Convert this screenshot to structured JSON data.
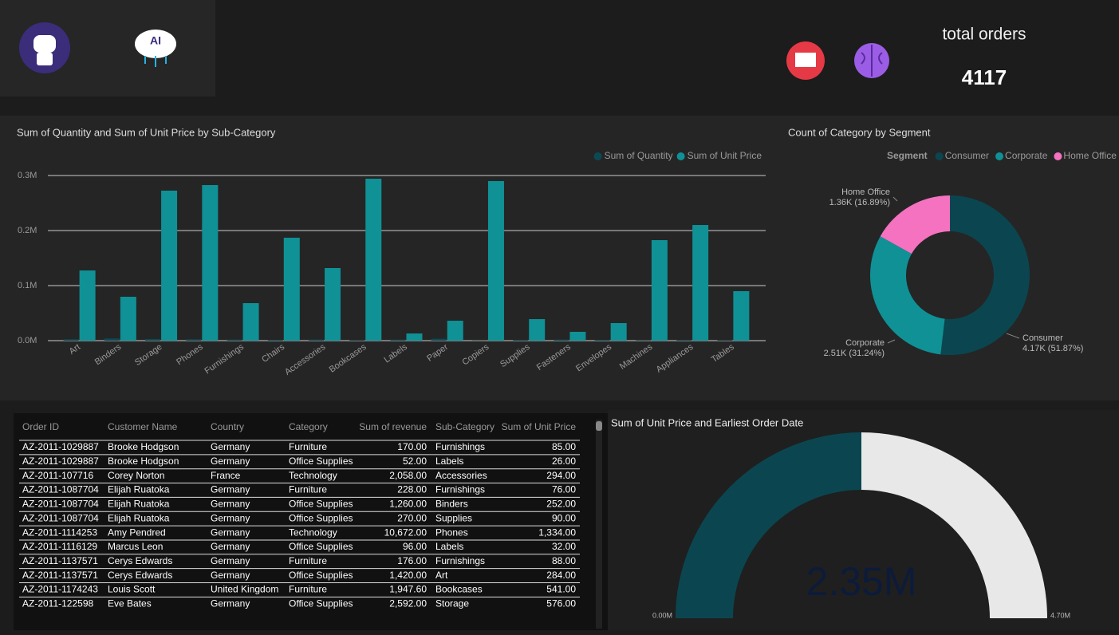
{
  "kpi": {
    "label": "total orders",
    "value": 4117
  },
  "chart_data": [
    {
      "type": "bar",
      "title": "Sum of Quantity and Sum of Unit Price by Sub-Category",
      "categories": [
        "Art",
        "Binders",
        "Storage",
        "Phones",
        "Furnishings",
        "Chairs",
        "Accessories",
        "Bookcases",
        "Labels",
        "Paper",
        "Copiers",
        "Supplies",
        "Fasteners",
        "Envelopes",
        "Machines",
        "Appliances",
        "Tables"
      ],
      "series": [
        {
          "name": "Sum of Quantity",
          "color": "#0b4a55",
          "values": [
            2500,
            4000,
            3000,
            2500,
            2000,
            1500,
            2000,
            800,
            1800,
            3500,
            300,
            1200,
            2000,
            1500,
            500,
            1200,
            800
          ]
        },
        {
          "name": "Sum of Unit Price",
          "color": "#0f9196",
          "values": [
            127500,
            79700,
            272500,
            282600,
            68100,
            187000,
            131900,
            294200,
            13000,
            36200,
            289900,
            39100,
            16000,
            31900,
            182600,
            210100,
            89900
          ]
        }
      ],
      "ylim": [
        0,
        300000
      ],
      "yticks": [
        {
          "value": 0,
          "label": "0.0M"
        },
        {
          "value": 100000,
          "label": "0.1M"
        },
        {
          "value": 200000,
          "label": "0.2M"
        },
        {
          "value": 300000,
          "label": "0.3M"
        }
      ],
      "grid": true,
      "legend": "top-right"
    },
    {
      "type": "pie",
      "title": "Count of Category by Segment",
      "legend_title": "Segment",
      "categories": [
        "Consumer",
        "Corporate",
        "Home Office"
      ],
      "values": [
        4170,
        2512,
        1358
      ],
      "value_labels": [
        "4.17K (51.87%)",
        "2.51K (31.24%)",
        "1.36K (16.89%)"
      ],
      "colors": [
        "#0b4650",
        "#0f9196",
        "#f472c0"
      ],
      "legend": "top-right"
    },
    {
      "type": "gauge",
      "title": "Sum of Unit Price and Earliest Order Date",
      "value": 2350000,
      "value_label": "2.35M",
      "ylim": [
        0,
        4700000
      ],
      "yticks": [
        {
          "value": 0,
          "label": "0.00M"
        },
        {
          "value": 4700000,
          "label": "4.70M"
        }
      ],
      "colors": [
        "#0b4650",
        "#e8e8e8"
      ]
    }
  ],
  "table": {
    "columns": [
      "Order ID",
      "Customer Name",
      "Country",
      "Category",
      "Sum of revenue",
      "Sub-Category",
      "Sum of Unit Price"
    ],
    "rows": [
      [
        "AZ-2011-1029887",
        "Brooke Hodgson",
        "Germany",
        "Furniture",
        "170.00",
        "Furnishings",
        "85.00"
      ],
      [
        "AZ-2011-1029887",
        "Brooke Hodgson",
        "Germany",
        "Office Supplies",
        "52.00",
        "Labels",
        "26.00"
      ],
      [
        "AZ-2011-107716",
        "Corey Norton",
        "France",
        "Technology",
        "2,058.00",
        "Accessories",
        "294.00"
      ],
      [
        "AZ-2011-1087704",
        "Elijah Ruatoka",
        "Germany",
        "Furniture",
        "228.00",
        "Furnishings",
        "76.00"
      ],
      [
        "AZ-2011-1087704",
        "Elijah Ruatoka",
        "Germany",
        "Office Supplies",
        "1,260.00",
        "Binders",
        "252.00"
      ],
      [
        "AZ-2011-1087704",
        "Elijah Ruatoka",
        "Germany",
        "Office Supplies",
        "270.00",
        "Supplies",
        "90.00"
      ],
      [
        "AZ-2011-1114253",
        "Amy Pendred",
        "Germany",
        "Technology",
        "10,672.00",
        "Phones",
        "1,334.00"
      ],
      [
        "AZ-2011-1116129",
        "Marcus Leon",
        "Germany",
        "Office Supplies",
        "96.00",
        "Labels",
        "32.00"
      ],
      [
        "AZ-2011-1137571",
        "Cerys Edwards",
        "Germany",
        "Furniture",
        "176.00",
        "Furnishings",
        "88.00"
      ],
      [
        "AZ-2011-1137571",
        "Cerys Edwards",
        "Germany",
        "Office Supplies",
        "1,420.00",
        "Art",
        "284.00"
      ],
      [
        "AZ-2011-1174243",
        "Louis Scott",
        "United Kingdom",
        "Furniture",
        "1,947.60",
        "Bookcases",
        "541.00"
      ],
      [
        "AZ-2011-122598",
        "Eve Bates",
        "Germany",
        "Office Supplies",
        "2,592.00",
        "Storage",
        "576.00"
      ]
    ]
  }
}
